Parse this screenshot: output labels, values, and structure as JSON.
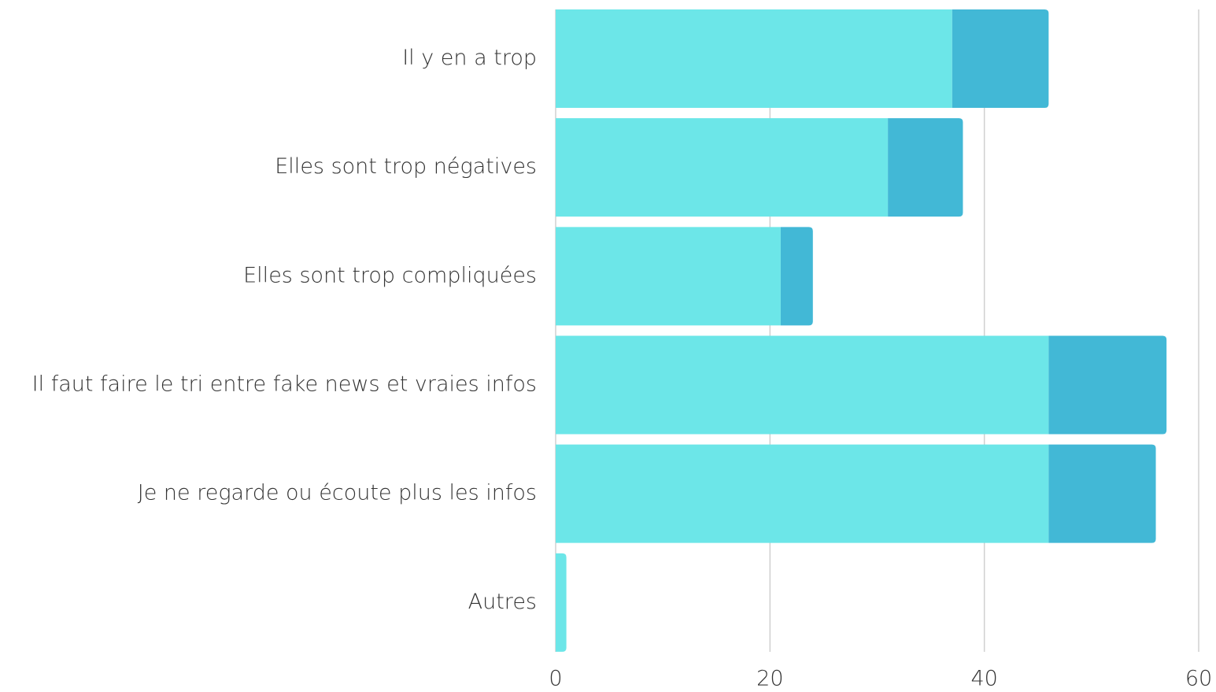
{
  "chart_data": {
    "type": "stacked-bar-horizontal",
    "categories": [
      "Il y en a trop",
      "Elles sont trop négatives",
      "Elles sont trop compliquées",
      "Il faut faire le tri entre fake news et vraies infos",
      "Je ne regarde ou écoute plus les infos",
      "Autres"
    ],
    "series": [
      {
        "color": "#6ce6e8",
        "values": [
          37,
          31,
          21,
          46,
          46,
          1
        ]
      },
      {
        "color": "#42b8d6",
        "values": [
          9,
          7,
          3,
          11,
          10,
          0
        ]
      }
    ],
    "xlim": [
      0,
      60
    ],
    "xticks": [
      0,
      20,
      40,
      60
    ],
    "grid": true
  }
}
